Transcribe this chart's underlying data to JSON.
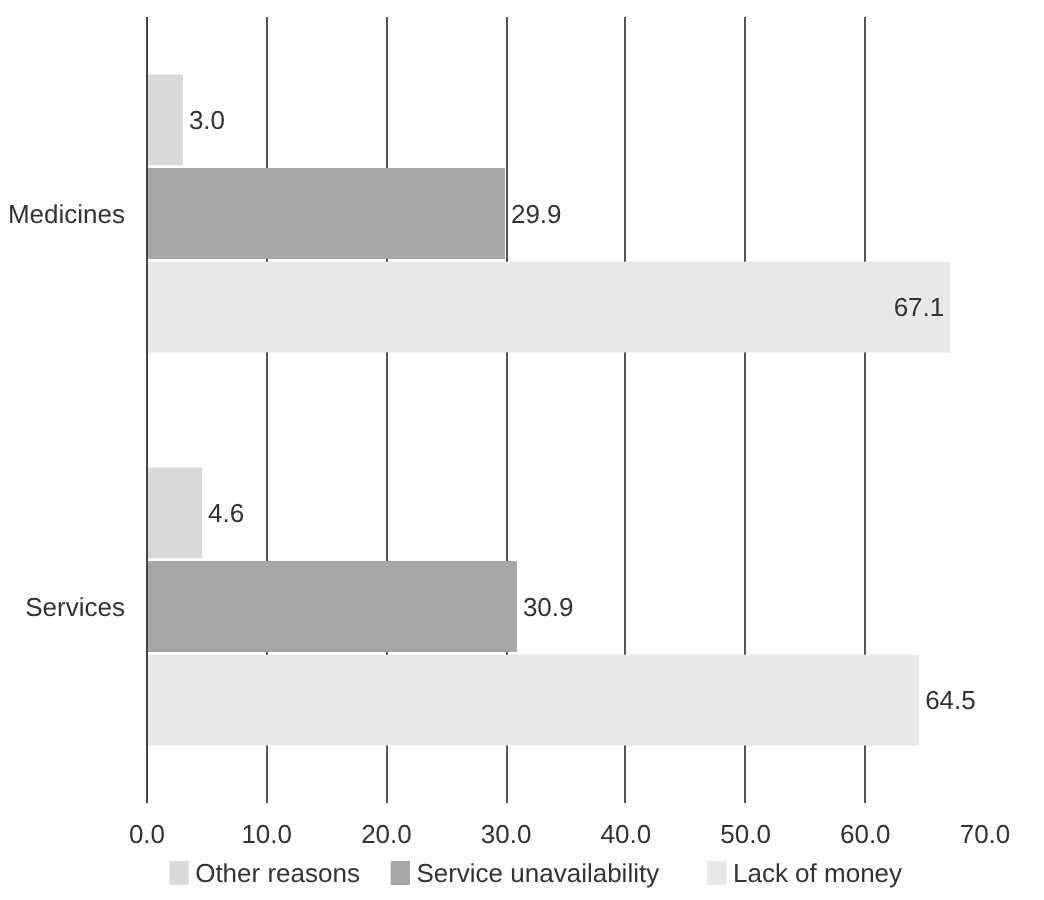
{
  "chart_data": {
    "type": "bar",
    "orientation": "horizontal",
    "categories": [
      "Medicines",
      "Services"
    ],
    "series": [
      {
        "name": "Other reasons",
        "color": "#d9d9d9",
        "values": [
          3.0,
          4.6
        ],
        "value_labels": [
          "3.0",
          "4.6"
        ]
      },
      {
        "name": "Service unavailability",
        "color": "#a6a6a6",
        "values": [
          29.9,
          30.9
        ],
        "value_labels": [
          "29.9",
          "30.9"
        ]
      },
      {
        "name": "Lack of money",
        "color": "#e8e8e8",
        "values": [
          67.1,
          64.5
        ],
        "value_labels": [
          "67.1",
          "64.5"
        ]
      }
    ],
    "xlim": [
      0,
      70
    ],
    "xticks": [
      {
        "value": 0,
        "label": "0.0"
      },
      {
        "value": 10,
        "label": "10.0"
      },
      {
        "value": 20,
        "label": "20.0"
      },
      {
        "value": 30,
        "label": "30.0"
      },
      {
        "value": 40,
        "label": "40.0"
      },
      {
        "value": 50,
        "label": "50.0"
      },
      {
        "value": 60,
        "label": "60.0"
      },
      {
        "value": 70,
        "label": "70.0"
      }
    ],
    "grid": "x",
    "legend": "bottom"
  }
}
